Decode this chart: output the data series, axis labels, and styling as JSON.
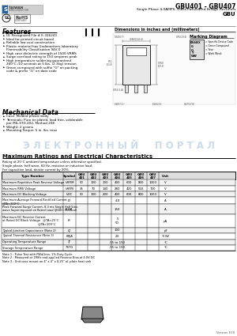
{
  "title": "GBU401 - GBU407",
  "subtitle": "Single Phase 4.0AMPS. Glass Passivated Bridge Rectifiers",
  "package": "GBU",
  "bg_color": "#ffffff",
  "features": [
    "UL Recognized File # E-326243",
    "Ideal for printed circuit board",
    "Reliable low cost construction",
    "Plastic material has Underwriters laboratory\nFlammability Classification 94V-0",
    "High case dielectric strength of 1500 VRMS",
    "Surge overload rating to 150 amperes peak",
    "High temperature soldering guaranteed\n260°C /10 seconds at 5 lbs. (2.3kg) tension",
    "Green compound with suffix \"G\" on packing\ncode & prefix \"G\" on date code"
  ],
  "mech_data": [
    "Case: Molded plastic body",
    "Terminals: Pure tin plated, lead free, solderable\nper MIL-STD-202, Method 208",
    "Weight: 2 grams",
    "Mounting Torque: 5 in. lbs. max"
  ],
  "table_headers": [
    "Type Number",
    "Symbol",
    "GBU\n401",
    "GBU\n402",
    "GBU\n403",
    "GBU\n404",
    "GBU\n405",
    "GBU\n406",
    "GBU\n407",
    "Unit"
  ],
  "table_rows": [
    [
      "Maximum Repetitive Peak Reverse Voltage",
      "VRRM",
      "50",
      "100",
      "200",
      "400",
      "600",
      "800",
      "1000",
      "V"
    ],
    [
      "Maximum RMS Voltage",
      "VRMS",
      "35",
      "70",
      "140",
      "280",
      "420",
      "560",
      "700",
      "V"
    ],
    [
      "Maximum DC Blocking Voltage",
      "VDC",
      "50",
      "100",
      "200",
      "400",
      "600",
      "800",
      "1000",
      "V"
    ],
    [
      "Maximum Average Forward Rectified Current\n@TA=100°C",
      "IO",
      "",
      "",
      "",
      "4.0",
      "",
      "",
      "",
      "A"
    ],
    [
      "Peak Forward Surge Current, 8.3 ms Single Half Sine-\nwave Superimposed on Rated Load (JEDEC Method)",
      "IFSM",
      "",
      "",
      "",
      "150",
      "",
      "",
      "",
      "A"
    ],
    [
      "Maximum DC Reverse Current\nat Rated DC Block Voltage   @TA=25°C\n                                        @TA=100°C",
      "IR",
      "",
      "",
      "",
      "5\n50",
      "",
      "",
      "",
      "μA"
    ],
    [
      "Typical Junction Capacitance (Note 2)",
      "CJ",
      "",
      "",
      "",
      "100",
      "",
      "",
      "",
      "pF"
    ],
    [
      "Typical Thermal Resistance (Note 3)",
      "RθJA",
      "",
      "",
      "",
      "20",
      "",
      "",
      "",
      "°C/W"
    ],
    [
      "Operating Temperature Range",
      "TJ",
      "",
      "",
      "",
      "-55 to 150",
      "",
      "",
      "",
      "°C"
    ],
    [
      "Storage Temperature Range",
      "TSTG",
      "",
      "",
      "",
      "-55 to 150",
      "",
      "",
      "",
      "°C"
    ]
  ],
  "notes": [
    "Note 1 : Pulse Test with PW≤1ms, 1% Duty Cycle",
    "Note 2 : Measured at 1MHz and applied Reverse Bias of 4.0V DC",
    "Note 3 : Unit case mount on 4\" x 4\" x 0.25\" al. plate heat sink"
  ],
  "watermark_text": "Э Л Е К Т Р О Н Н Ы Й     П О Р Т А Л",
  "max_ratings_title": "Maximum Ratings and Electrical Characteristics",
  "max_ratings_sub1": "Rating at 25°C ambient temperature unless otherwise specified.",
  "max_ratings_sub2": "Single phase, half wave, 60 Hz, resistive or inductive load.",
  "max_ratings_sub3": "For capacitive load, derate current by 20%.",
  "mech_title": "Mechanical Data",
  "dim_title": "Dimensions in inches and (millimeters)",
  "mark_title": "Marking Diagram",
  "version": "Version E10"
}
